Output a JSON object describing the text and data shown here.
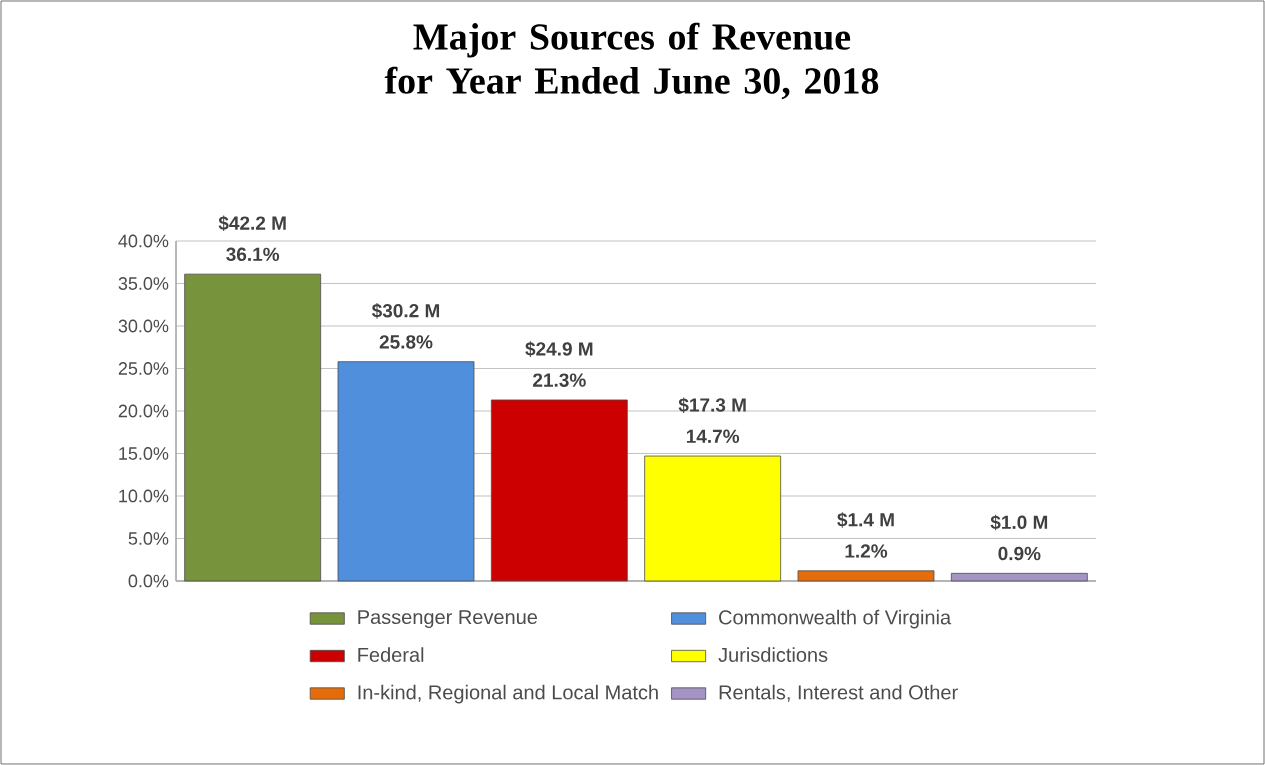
{
  "chart_data": {
    "type": "bar",
    "title": "Major Sources of Revenue for Year Ended June 30, 2018",
    "categories": [
      null,
      null,
      null,
      null,
      null,
      null
    ],
    "series": [
      {
        "name": "Passenger Revenue",
        "color": "#77933c",
        "values": [
          36.1,
          null,
          null,
          null,
          null,
          null
        ],
        "value_labels": [
          "36.1%",
          null,
          null,
          null,
          null,
          null
        ]
      },
      {
        "name": "Commonwealth of Virginia",
        "color": "#4f8fdc",
        "values": [
          null,
          25.8,
          null,
          null,
          null,
          null
        ],
        "value_labels": [
          null,
          "25.8%",
          null,
          null,
          null,
          null
        ]
      },
      {
        "name": "Federal",
        "color": "#cc0000",
        "values": [
          null,
          null,
          21.3,
          null,
          null,
          null
        ],
        "value_labels": [
          null,
          null,
          "21.3%",
          null,
          null,
          null
        ]
      },
      {
        "name": "Jurisdictions",
        "color": "#ffff00",
        "values": [
          null,
          null,
          null,
          14.7,
          null,
          null
        ],
        "value_labels": [
          null,
          null,
          null,
          "14.7%",
          null,
          null
        ]
      },
      {
        "name": "In-kind, Regional and Local Match",
        "color": "#e46c0a",
        "values": [
          null,
          null,
          null,
          null,
          1.2,
          null
        ],
        "value_labels": [
          null,
          null,
          null,
          null,
          "1.2%",
          null
        ]
      },
      {
        "name": "Rentals, Interest and Other",
        "color": "#a394c4",
        "values": [
          null,
          null,
          null,
          null,
          null,
          0.9
        ],
        "value_labels": [
          null,
          null,
          null,
          null,
          null,
          "0.9%"
        ]
      }
    ],
    "annotations": [
      "$42.2 M",
      "$30.2 M",
      "$24.9 M",
      "$17.3 M",
      "$1.4 M",
      "$1.0 M"
    ],
    "ylim": [
      0,
      40
    ],
    "yticks": [
      {
        "value": 0,
        "label": "0.0%"
      },
      {
        "value": 5,
        "label": "5.0%"
      },
      {
        "value": 10,
        "label": "10.0%"
      },
      {
        "value": 15,
        "label": "15.0%"
      },
      {
        "value": 20,
        "label": "20.0%"
      },
      {
        "value": 25,
        "label": "25.0%"
      },
      {
        "value": 30,
        "label": "30.0%"
      },
      {
        "value": 35,
        "label": "35.0%"
      },
      {
        "value": 40,
        "label": "40.0%"
      }
    ],
    "grid": "y",
    "legend": "bottom",
    "tick_labels": "y"
  }
}
